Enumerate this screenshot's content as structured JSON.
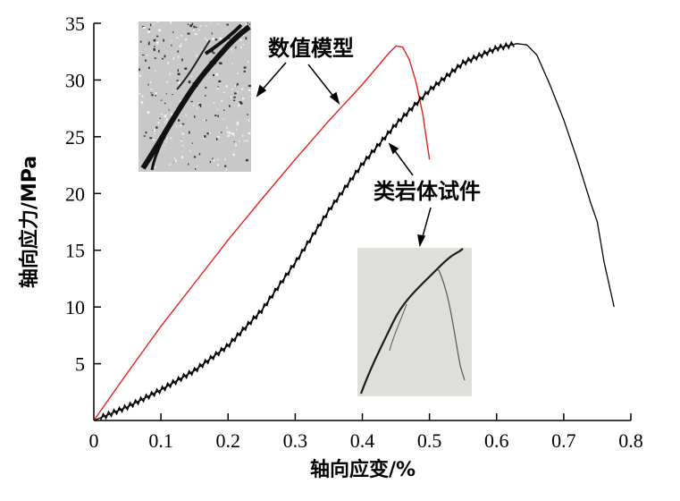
{
  "chart_data": {
    "type": "line",
    "xlabel": "轴向应变/%",
    "ylabel": "轴向应力/MPa",
    "xlim": [
      0,
      0.8
    ],
    "ylim": [
      0,
      35
    ],
    "x_ticks": [
      "0",
      "0.1",
      "0.2",
      "0.3",
      "0.4",
      "0.5",
      "0.6",
      "0.7",
      "0.8"
    ],
    "y_ticks": [
      "5",
      "10",
      "15",
      "20",
      "25",
      "30",
      "35"
    ],
    "series": [
      {
        "name": "数值模型",
        "color": "#e8201c",
        "x": [
          0,
          0.05,
          0.1,
          0.15,
          0.2,
          0.25,
          0.3,
          0.35,
          0.4,
          0.42,
          0.44,
          0.45,
          0.46,
          0.47,
          0.48,
          0.49,
          0.5
        ],
        "y": [
          0,
          4.2,
          8.3,
          12.1,
          15.9,
          19.5,
          23.0,
          26.4,
          29.6,
          31.0,
          32.4,
          33.0,
          32.9,
          31.8,
          29.8,
          27.0,
          23.0
        ]
      },
      {
        "name": "类岩体试件",
        "color": "#000000",
        "x": [
          0,
          0.05,
          0.1,
          0.15,
          0.2,
          0.25,
          0.3,
          0.35,
          0.4,
          0.45,
          0.5,
          0.55,
          0.6,
          0.63,
          0.645,
          0.66,
          0.68,
          0.7,
          0.72,
          0.74,
          0.75,
          0.76,
          0.775
        ],
        "y": [
          0,
          1.2,
          2.7,
          4.4,
          6.6,
          9.7,
          13.9,
          18.5,
          22.6,
          26.1,
          29.1,
          31.5,
          32.8,
          33.2,
          33.1,
          32.2,
          29.5,
          26.5,
          23.0,
          19.2,
          17.5,
          14.0,
          10.0
        ]
      }
    ],
    "annotations": [
      {
        "label": "数值模型"
      },
      {
        "label": "类岩体试件"
      }
    ]
  }
}
